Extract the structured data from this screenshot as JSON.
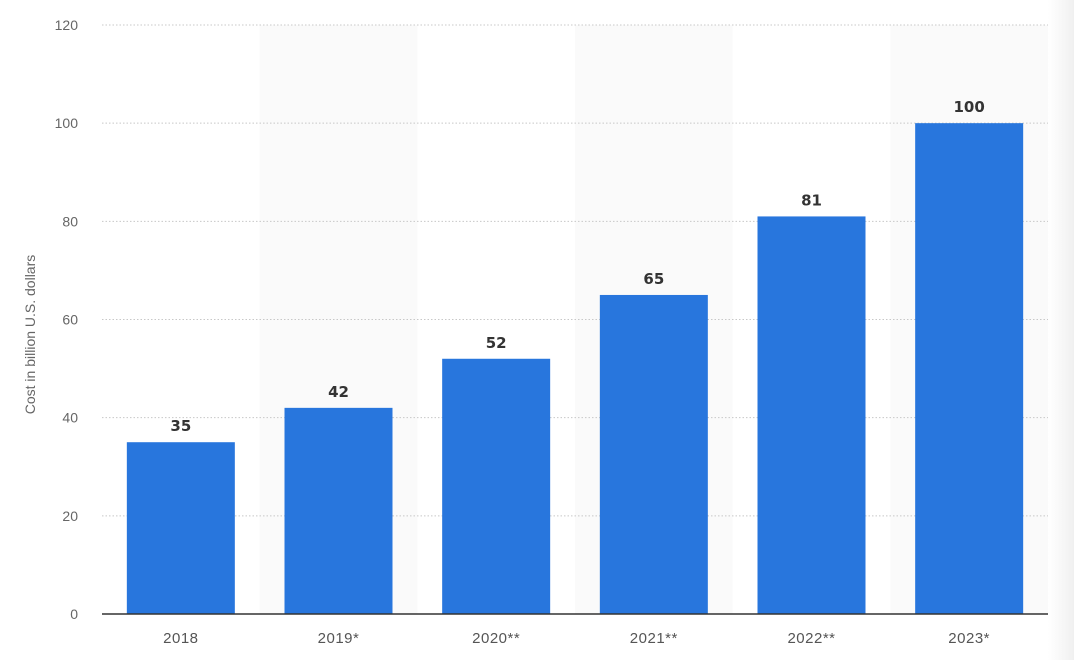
{
  "chart_data": {
    "type": "bar",
    "categories": [
      "2018",
      "2019*",
      "2020**",
      "2021**",
      "2022**",
      "2023*"
    ],
    "values": [
      35,
      42,
      52,
      65,
      81,
      100
    ],
    "value_labels": [
      "35",
      "42",
      "52",
      "65",
      "81",
      "100"
    ],
    "title": "",
    "xlabel": "",
    "ylabel": "Cost in billion U.S. dollars",
    "ylim": [
      0,
      120
    ],
    "yticks": [
      0,
      20,
      40,
      60,
      80,
      100,
      120
    ],
    "ytick_labels": [
      "0",
      "20",
      "40",
      "60",
      "80",
      "100",
      "120"
    ],
    "grid": true,
    "legend": "none",
    "colors": {
      "bar": "#2876dd",
      "band": "#fafafa",
      "grid": "#c8c8c8",
      "baseline": "#333333"
    }
  }
}
